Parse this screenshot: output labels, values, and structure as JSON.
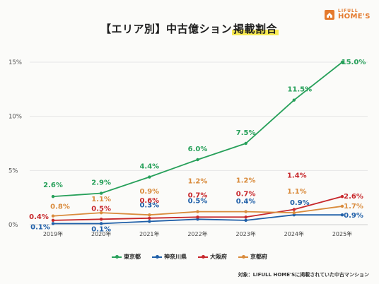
{
  "title_part1": "【エリア別】中古億ション",
  "title_part2": "掲載割合",
  "logo": {
    "line1": "LIFULL",
    "line2": "HOME'S"
  },
  "source": "対象：LIFULL HOME'Sに掲載されていた中古マンション",
  "chart_data": {
    "type": "line",
    "x": [
      "2019年",
      "2020年",
      "2021年",
      "2022年",
      "2023年",
      "2024年",
      "2025年"
    ],
    "ylim": [
      0,
      15
    ],
    "yticks": [
      0,
      5,
      10,
      15
    ],
    "ytick_labels": [
      "0%",
      "5%",
      "10%",
      "15%"
    ],
    "grid": true,
    "legend_position": "bottom",
    "series": [
      {
        "name": "東京都",
        "color": "#27a05a",
        "values": [
          2.6,
          2.9,
          4.4,
          6.0,
          7.5,
          11.5,
          15.0
        ],
        "labels": [
          "2.6%",
          "2.9%",
          "4.4%",
          "6.0%",
          "7.5%",
          "11.5%",
          "15.0%"
        ]
      },
      {
        "name": "神奈川県",
        "color": "#1f5fa8",
        "values": [
          0.1,
          0.1,
          0.3,
          0.5,
          0.4,
          0.9,
          0.9
        ],
        "labels": [
          "0.1%",
          "0.1%",
          "0.3%",
          "0.5%",
          "0.4%",
          "0.9%",
          "0.9%"
        ]
      },
      {
        "name": "大阪府",
        "color": "#c7272b",
        "values": [
          0.4,
          0.5,
          0.6,
          0.7,
          0.7,
          1.4,
          2.6
        ],
        "labels": [
          "0.4%",
          "0.5%",
          "0.6%",
          "0.7%",
          "0.7%",
          "1.4%",
          "2.6%"
        ]
      },
      {
        "name": "京都府",
        "color": "#d98b3c",
        "values": [
          0.8,
          1.1,
          0.9,
          1.2,
          1.2,
          1.1,
          1.7
        ],
        "labels": [
          "0.8%",
          "1.1%",
          "0.9%",
          "1.2%",
          "1.2%",
          "1.1%",
          "1.7%"
        ]
      }
    ]
  }
}
